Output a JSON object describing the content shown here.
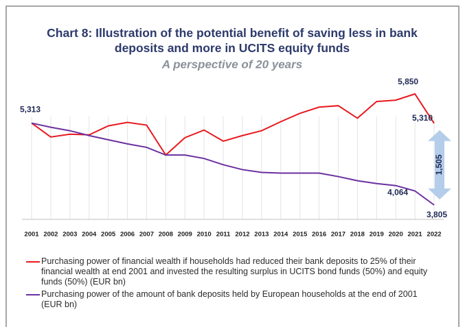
{
  "chart_data": {
    "type": "line",
    "title": "Chart 8: Illustration of the potential benefit of saving less in bank deposits and more in UCITS equity funds",
    "subtitle": "A perspective of 20 years",
    "categories": [
      "2001",
      "2002",
      "2003",
      "2004",
      "2005",
      "2006",
      "2007",
      "2008",
      "2009",
      "2010",
      "2011",
      "2012",
      "2013",
      "2014",
      "2015",
      "2016",
      "2017",
      "2018",
      "2019",
      "2020",
      "2021",
      "2022"
    ],
    "series": [
      {
        "name": "Purchasing power of financial wealth if households had reduced their bank deposits to 25% of their financial wealth at end 2001 and invested the resulting surplus in UCITS bond funds (50%) and equity funds (50%) (EUR bn)",
        "color": "#e8191f",
        "values": [
          5313,
          5057,
          5108,
          5096,
          5262,
          5326,
          5275,
          4725,
          5044,
          5185,
          4980,
          5083,
          5172,
          5339,
          5492,
          5607,
          5633,
          5403,
          5710,
          5735,
          5850,
          5310
        ],
        "value_labels": [
          "5,313",
          null,
          null,
          null,
          null,
          null,
          null,
          null,
          null,
          null,
          null,
          null,
          null,
          null,
          null,
          null,
          null,
          null,
          null,
          null,
          "5,850",
          "5,310"
        ]
      },
      {
        "name": "Purchasing power of the amount of bank deposits held by European households at the end of 2001 (EUR bn)",
        "color": "#6a2fa0",
        "values": [
          5313,
          5236,
          5172,
          5083,
          5006,
          4930,
          4866,
          4725,
          4725,
          4661,
          4546,
          4456,
          4405,
          4392,
          4392,
          4392,
          4328,
          4252,
          4200,
          4162,
          4064,
          3805
        ],
        "value_labels": [
          null,
          null,
          null,
          null,
          null,
          null,
          null,
          null,
          null,
          null,
          null,
          null,
          null,
          null,
          null,
          null,
          null,
          null,
          null,
          null,
          "4,064",
          "3,805"
        ]
      }
    ],
    "annotation": {
      "value": 1505,
      "label": "1,505"
    },
    "grid": true
  }
}
